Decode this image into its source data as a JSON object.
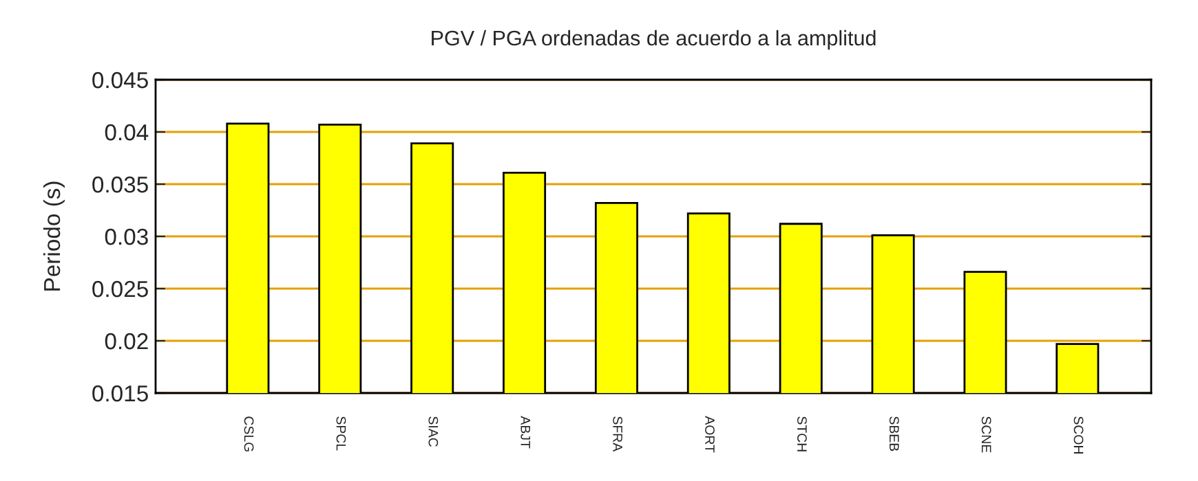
{
  "chart_data": {
    "type": "bar",
    "title": "PGV / PGA ordenadas de acuerdo a la amplitud",
    "ylabel": "Periodo (s)",
    "categories": [
      "CSLG",
      "SPCL",
      "SIAC",
      "ABJT",
      "SFRA",
      "AORT",
      "STCH",
      "SBEB",
      "SCNE",
      "SCOH"
    ],
    "values": [
      0.0408,
      0.0407,
      0.0389,
      0.0361,
      0.0332,
      0.0322,
      0.0312,
      0.0301,
      0.0266,
      0.0197
    ],
    "color": "#ffff00",
    "ylim": [
      0.015,
      0.045
    ],
    "yticks": [
      0.015,
      0.02,
      0.025,
      0.03,
      0.035,
      0.04,
      0.045
    ],
    "grid": "y"
  }
}
